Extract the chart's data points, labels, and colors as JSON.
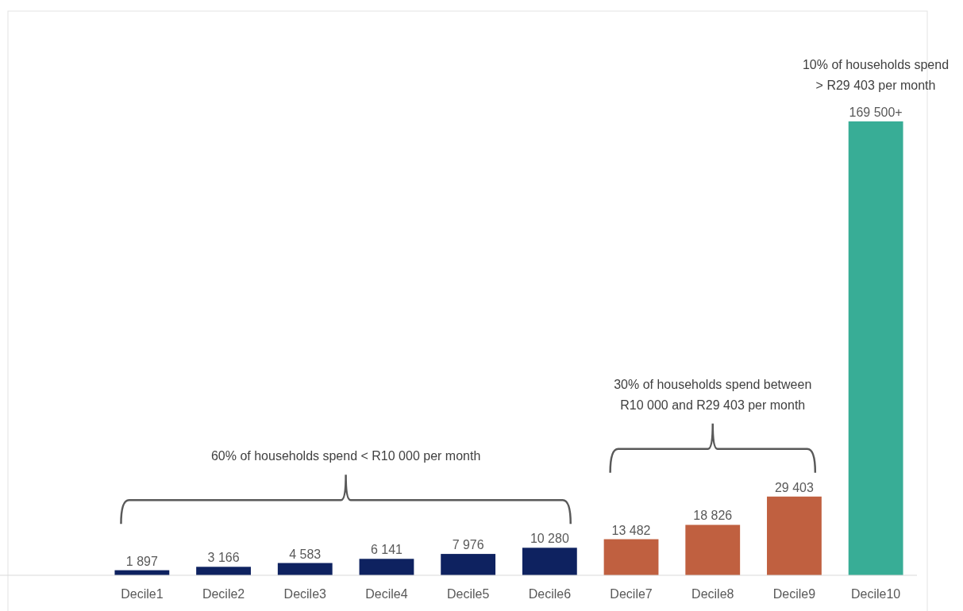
{
  "chart_data": {
    "type": "bar",
    "categories": [
      "Decile1",
      "Decile2",
      "Decile3",
      "Decile4",
      "Decile5",
      "Decile6",
      "Decile7",
      "Decile8",
      "Decile9",
      "Decile10"
    ],
    "values": [
      1897,
      3166,
      4583,
      6141,
      7976,
      10280,
      13482,
      18826,
      29403,
      169500
    ],
    "colors": [
      "#0e2260",
      "#0e2260",
      "#0e2260",
      "#0e2260",
      "#0e2260",
      "#0e2260",
      "#c06040",
      "#c06040",
      "#c06040",
      "#38ad96"
    ],
    "value_labels": [
      "1 897",
      "3 166",
      "4 583",
      "6 141",
      "7 976",
      "10 280",
      "13 482",
      "18 826",
      "29 403",
      "169 500+"
    ],
    "annotations": [
      "60% of households spend < R10 000 per month",
      "30% of households spend between\nR10 000 and R29 403 per month",
      "10% of households spend\n> R29 403 per month"
    ]
  }
}
